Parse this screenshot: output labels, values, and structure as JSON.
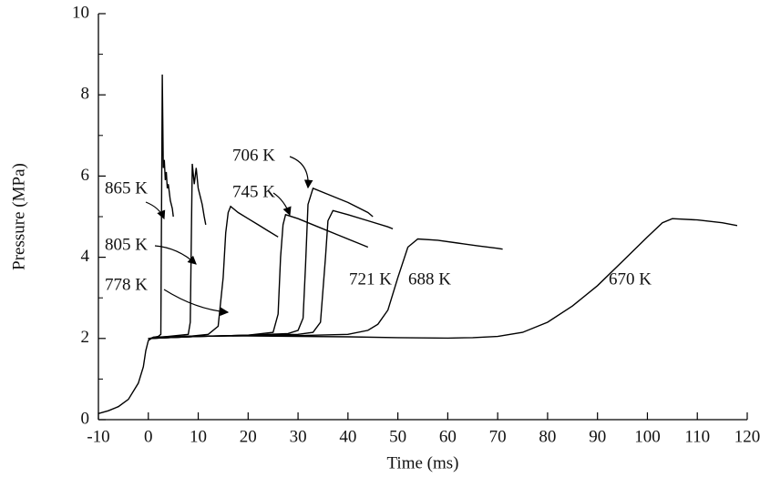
{
  "chart_data": {
    "type": "line",
    "xlabel": "Time (ms)",
    "ylabel": "Pressure (MPa)",
    "xlim": [
      -10,
      120
    ],
    "xticks": [
      -10,
      0,
      10,
      20,
      30,
      40,
      50,
      60,
      70,
      80,
      90,
      100,
      110,
      120
    ],
    "ylim": [
      0,
      10
    ],
    "yticks": [
      0,
      2,
      4,
      6,
      8,
      10
    ],
    "yminorticks": [
      1,
      3,
      5,
      7,
      9
    ],
    "series": [
      {
        "name": "865 K",
        "color": "#000000",
        "x": [
          0,
          1,
          2,
          2.5,
          2.8,
          3.0,
          3.2,
          3.4,
          3.6,
          3.8,
          4.0,
          4.4,
          4.8,
          5.0
        ],
        "values": [
          1.98,
          2.03,
          2.05,
          2.1,
          8.5,
          6.2,
          6.4,
          5.9,
          6.1,
          5.7,
          5.8,
          5.4,
          5.2,
          5.0
        ]
      },
      {
        "name": "805 K",
        "color": "#000000",
        "x": [
          0,
          4,
          8,
          8.4,
          8.8,
          9.2,
          9.6,
          10,
          10.4,
          10.8,
          11.2,
          11.5
        ],
        "values": [
          2.0,
          2.05,
          2.1,
          2.4,
          6.3,
          5.8,
          6.2,
          5.7,
          5.5,
          5.3,
          5.0,
          4.8
        ]
      },
      {
        "name": "778 K",
        "color": "#000000",
        "x": [
          0,
          8,
          12,
          14,
          15,
          15.5,
          16,
          16.5,
          18,
          20,
          22,
          24,
          26
        ],
        "values": [
          2.0,
          2.05,
          2.1,
          2.3,
          3.5,
          4.6,
          5.1,
          5.25,
          5.1,
          4.95,
          4.8,
          4.65,
          4.5
        ]
      },
      {
        "name": "745 K",
        "color": "#000000",
        "x": [
          0,
          10,
          20,
          25,
          26,
          26.5,
          27,
          27.5,
          30,
          34,
          38,
          42,
          44
        ],
        "values": [
          2.0,
          2.05,
          2.08,
          2.15,
          2.6,
          4.0,
          4.8,
          5.05,
          4.95,
          4.75,
          4.55,
          4.35,
          4.25
        ]
      },
      {
        "name": "706 K",
        "color": "#000000",
        "x": [
          0,
          10,
          20,
          28,
          30,
          31,
          31.5,
          32,
          33,
          36,
          40,
          44,
          45
        ],
        "values": [
          2.0,
          2.05,
          2.08,
          2.12,
          2.2,
          2.5,
          3.8,
          5.3,
          5.7,
          5.55,
          5.35,
          5.1,
          5.0
        ]
      },
      {
        "name": "721 K",
        "color": "#000000",
        "x": [
          0,
          10,
          20,
          30,
          33,
          34.5,
          35.5,
          36,
          37,
          40,
          44,
          48,
          49
        ],
        "values": [
          2.0,
          2.05,
          2.08,
          2.1,
          2.15,
          2.4,
          4.0,
          4.9,
          5.15,
          5.05,
          4.9,
          4.75,
          4.7
        ]
      },
      {
        "name": "688 K",
        "color": "#000000",
        "x": [
          0,
          10,
          20,
          30,
          40,
          44,
          46,
          48,
          50,
          52,
          54,
          58,
          62,
          66,
          70,
          71
        ],
        "values": [
          2.0,
          2.05,
          2.07,
          2.07,
          2.1,
          2.2,
          2.35,
          2.7,
          3.5,
          4.25,
          4.45,
          4.42,
          4.35,
          4.28,
          4.22,
          4.2
        ]
      },
      {
        "name": "670 K",
        "color": "#000000",
        "x": [
          -10,
          -8,
          -6,
          -4,
          -2,
          -1,
          -0.5,
          0,
          1,
          5,
          10,
          20,
          30,
          40,
          50,
          60,
          65,
          70,
          75,
          80,
          85,
          90,
          95,
          100,
          103,
          105,
          110,
          115,
          118
        ],
        "values": [
          0.15,
          0.22,
          0.32,
          0.5,
          0.9,
          1.3,
          1.7,
          1.95,
          2.03,
          2.05,
          2.06,
          2.06,
          2.05,
          2.04,
          2.02,
          2.01,
          2.02,
          2.05,
          2.15,
          2.4,
          2.8,
          3.3,
          3.9,
          4.5,
          4.85,
          4.95,
          4.92,
          4.85,
          4.78
        ]
      }
    ]
  }
}
